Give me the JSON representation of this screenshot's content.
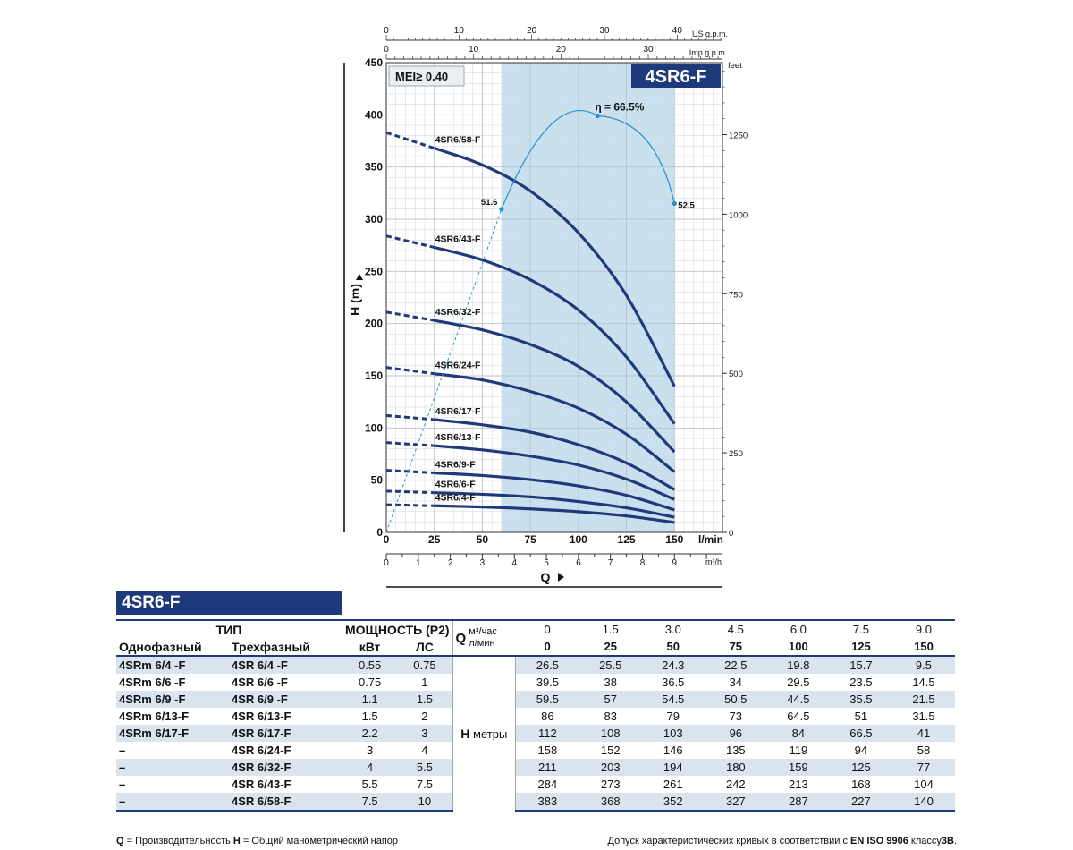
{
  "chart_data": {
    "type": "line",
    "model_badge": "4SR6-F",
    "mei_label": "MEI≥ 0.40",
    "y_label": "H (m)",
    "x_label": "Q",
    "ylim": [
      0,
      450
    ],
    "y_ticks": [
      "0",
      "50",
      "100",
      "150",
      "200",
      "250",
      "300",
      "350",
      "400",
      "450"
    ],
    "x_lmin_ticks": [
      "0",
      "25",
      "50",
      "75",
      "100",
      "125",
      "150"
    ],
    "x_lmin_unit": "l/min",
    "x_m3h_ticks": [
      "0",
      "1",
      "2",
      "3",
      "4",
      "5",
      "6",
      "7",
      "8",
      "9"
    ],
    "x_m3h_unit": "m³/h",
    "usgpm_ticks": [
      "0",
      "10",
      "20",
      "30",
      "40"
    ],
    "usgpm_unit": "US g.p.m.",
    "impgpm_ticks": [
      "0",
      "10",
      "20",
      "30"
    ],
    "impgpm_unit": "Imp g.p.m.",
    "feet_ticks": [
      "0",
      "250",
      "500",
      "750",
      "1000",
      "1250"
    ],
    "feet_unit": "feet",
    "recommended_range_lmin": [
      60,
      150
    ],
    "x_lmin": [
      0,
      25,
      50,
      75,
      100,
      125,
      150
    ],
    "series": [
      {
        "name": "4SR6/58-F",
        "values": [
          383,
          368,
          352,
          327,
          287,
          227,
          140
        ]
      },
      {
        "name": "4SR6/43-F",
        "values": [
          284,
          273,
          261,
          242,
          213,
          168,
          104
        ]
      },
      {
        "name": "4SR6/32-F",
        "values": [
          211,
          203,
          194,
          180,
          159,
          125,
          77
        ]
      },
      {
        "name": "4SR6/24-F",
        "values": [
          158,
          152,
          146,
          135,
          119,
          94,
          58
        ]
      },
      {
        "name": "4SR6/17-F",
        "values": [
          112,
          108,
          103,
          96,
          84,
          66.5,
          41
        ]
      },
      {
        "name": "4SR6/13-F",
        "values": [
          86,
          83,
          79,
          73,
          64.5,
          51,
          31.5
        ]
      },
      {
        "name": "4SR6/9-F",
        "values": [
          59.5,
          57,
          54.5,
          50.5,
          44.5,
          35.5,
          21.5
        ]
      },
      {
        "name": "4SR6/6-F",
        "values": [
          39.5,
          38,
          36.5,
          34,
          29.5,
          23.5,
          14.5
        ]
      },
      {
        "name": "4SR6/4-F",
        "values": [
          26.5,
          25.5,
          24.3,
          22.5,
          19.8,
          15.7,
          9.5
        ]
      }
    ],
    "efficiency": {
      "label_peak": "η = 66.5%",
      "label_start": "51.6",
      "label_end": "52.5",
      "points_lmin_pct": [
        [
          0,
          0
        ],
        [
          60,
          51.6
        ],
        [
          110,
          66.5
        ],
        [
          150,
          52.5
        ]
      ]
    }
  },
  "table": {
    "title": "4SR6-F",
    "col_type": "ТИП",
    "col_power": "МОЩНОСТЬ (P2)",
    "col_single": "Однофазный",
    "col_three": "Трехфазный",
    "col_kw": "кВт",
    "col_hp": "ЛС",
    "q_letter": "Q",
    "q_unit_m3": "м³/час",
    "q_unit_lmin": "л/мин",
    "q_m3": [
      "0",
      "1.5",
      "3.0",
      "4.5",
      "6.0",
      "7.5",
      "9.0"
    ],
    "q_lmin": [
      "0",
      "25",
      "50",
      "75",
      "100",
      "125",
      "150"
    ],
    "h_label_letter": "H",
    "h_label_unit": "метры",
    "rows": [
      {
        "single": "4SRm 6/4   -F",
        "three": "4SR 6/4   -F",
        "kw": "0.55",
        "hp": "0.75",
        "h": [
          "26.5",
          "25.5",
          "24.3",
          "22.5",
          "19.8",
          "15.7",
          "9.5"
        ]
      },
      {
        "single": "4SRm 6/6   -F",
        "three": "4SR 6/6   -F",
        "kw": "0.75",
        "hp": "1",
        "h": [
          "39.5",
          "38",
          "36.5",
          "34",
          "29.5",
          "23.5",
          "14.5"
        ]
      },
      {
        "single": "4SRm 6/9   -F",
        "three": "4SR 6/9   -F",
        "kw": "1.1",
        "hp": "1.5",
        "h": [
          "59.5",
          "57",
          "54.5",
          "50.5",
          "44.5",
          "35.5",
          "21.5"
        ]
      },
      {
        "single": "4SRm 6/13-F",
        "three": "4SR 6/13-F",
        "kw": "1.5",
        "hp": "2",
        "h": [
          "86",
          "83",
          "79",
          "73",
          "64.5",
          "51",
          "31.5"
        ]
      },
      {
        "single": "4SRm 6/17-F",
        "three": "4SR 6/17-F",
        "kw": "2.2",
        "hp": "3",
        "h": [
          "112",
          "108",
          "103",
          "96",
          "84",
          "66.5",
          "41"
        ]
      },
      {
        "single": "–",
        "three": "4SR 6/24-F",
        "kw": "3",
        "hp": "4",
        "h": [
          "158",
          "152",
          "146",
          "135",
          "119",
          "94",
          "58"
        ]
      },
      {
        "single": "–",
        "three": "4SR 6/32-F",
        "kw": "4",
        "hp": "5.5",
        "h": [
          "211",
          "203",
          "194",
          "180",
          "159",
          "125",
          "77"
        ]
      },
      {
        "single": "–",
        "three": "4SR 6/43-F",
        "kw": "5.5",
        "hp": "7.5",
        "h": [
          "284",
          "273",
          "261",
          "242",
          "213",
          "168",
          "104"
        ]
      },
      {
        "single": "–",
        "three": "4SR 6/58-F",
        "kw": "7.5",
        "hp": "10",
        "h": [
          "383",
          "368",
          "352",
          "327",
          "287",
          "227",
          "140"
        ]
      }
    ]
  },
  "footer": {
    "left_q": "Q",
    "left_q_text": " = Производительность  ",
    "left_h": "H",
    "left_h_text": " = Общий манометрический напор",
    "right_text": "Допуск характеристических кривых в соответствии с ",
    "right_std": "EN ISO 9906",
    "right_class": " классу",
    "right_grade": "3B",
    "right_dot": "."
  },
  "colors": {
    "curve": "#1f3a7a",
    "efficiency": "#2a8fd0",
    "band": "#c9e1ef",
    "grid": "#cfd6dc"
  }
}
